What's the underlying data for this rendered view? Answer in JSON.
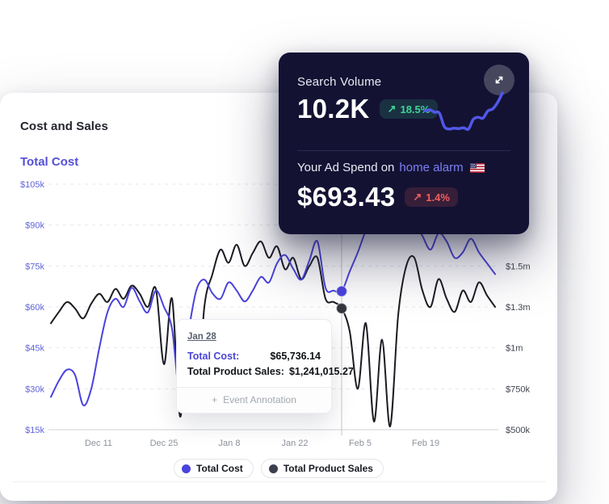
{
  "dark_card": {
    "search_volume": {
      "label": "Search Volume",
      "value": "10.2K",
      "delta_arrow": "↗",
      "delta": "18.5%"
    },
    "ad_spend": {
      "prefix": "Your Ad Spend on",
      "keyword": "home alarm",
      "value": "$693.43",
      "delta_arrow": "↗",
      "delta": "1.4%"
    },
    "sparkline_values": [
      55,
      58,
      52,
      50,
      18,
      12,
      14,
      13,
      15,
      12,
      35,
      40,
      38,
      55,
      60,
      75,
      98
    ],
    "colors": {
      "background": "#141233",
      "sparkline": "#5157e8",
      "positive": "#3ed598",
      "negative": "#f06060",
      "keyword": "#7b80f4"
    }
  },
  "main_card": {
    "title": "Cost and Sales",
    "subtitle": "Total Cost",
    "tooltip": {
      "date": "Jan 28",
      "rows": [
        {
          "label": "Total Cost:",
          "value": "$65,736.14"
        },
        {
          "label": "Total Product Sales:",
          "value": "$1,241,015.27"
        }
      ],
      "action_plus": "+",
      "action_label": "Event Annotation"
    },
    "legend": [
      {
        "label": "Total Cost"
      },
      {
        "label": "Total Product Sales"
      }
    ]
  },
  "chart_data": {
    "type": "line",
    "title": "Cost and Sales",
    "x_tick_labels": [
      "Dec 11",
      "Dec 25",
      "Jan 8",
      "Jan 22",
      "Feb 5",
      "Feb 19"
    ],
    "left_axis": {
      "tick_labels": [
        "$105k",
        "$90k",
        "$75k",
        "$60k",
        "$45k",
        "$30k",
        "$15k"
      ],
      "min": 15000,
      "max": 105000,
      "label_color": "#6165da"
    },
    "right_axis": {
      "tick_labels": [
        "$1.5m",
        "$1.3m",
        "$1m",
        "$750k",
        "$500k"
      ],
      "min": 500000,
      "max": 1500000,
      "label_color": "#40454f"
    },
    "grid": "dashed-horizontal",
    "legend_position": "bottom-center",
    "series": [
      {
        "name": "Total Product Sales",
        "axis": "right",
        "color": "#1a1c22",
        "values": [
          1150000,
          1220000,
          1280000,
          1240000,
          1180000,
          1270000,
          1330000,
          1280000,
          1360000,
          1300000,
          1380000,
          1330000,
          1250000,
          1360000,
          900000,
          1300000,
          580000,
          1150000,
          620000,
          1250000,
          1450000,
          1600000,
          1520000,
          1630000,
          1500000,
          1580000,
          1650000,
          1550000,
          1620000,
          1480000,
          1550000,
          1420000,
          1500000,
          1550000,
          1300000,
          1280000,
          1241015,
          1100000,
          750000,
          1150000,
          550000,
          1050000,
          520000,
          1200000,
          1500000,
          1550000,
          1350000,
          1250000,
          1420000,
          1300000,
          1220000,
          1350000,
          1280000,
          1400000,
          1320000,
          1250000
        ]
      },
      {
        "name": "Total Cost",
        "axis": "left",
        "color": "#4a43dd",
        "values": [
          27000,
          33000,
          37000,
          35000,
          24000,
          30000,
          45000,
          58000,
          63000,
          60000,
          67000,
          62000,
          58000,
          66000,
          60000,
          52000,
          28000,
          50000,
          66000,
          70000,
          65000,
          63000,
          69000,
          66000,
          62000,
          66000,
          71000,
          69000,
          76000,
          79000,
          74000,
          70000,
          77000,
          84000,
          67000,
          66000,
          65736,
          73000,
          80000,
          88000,
          93000,
          97000,
          95000,
          90000,
          96000,
          91000,
          86000,
          81000,
          87000,
          84000,
          78000,
          80000,
          85000,
          80000,
          76000,
          72000
        ]
      }
    ],
    "highlight": {
      "x_index": 36,
      "date": "Jan 28",
      "total_cost": 65736.14,
      "total_product_sales": 1241015.27,
      "dot_colors": [
        "#4a43dd",
        "#33363f"
      ]
    }
  }
}
